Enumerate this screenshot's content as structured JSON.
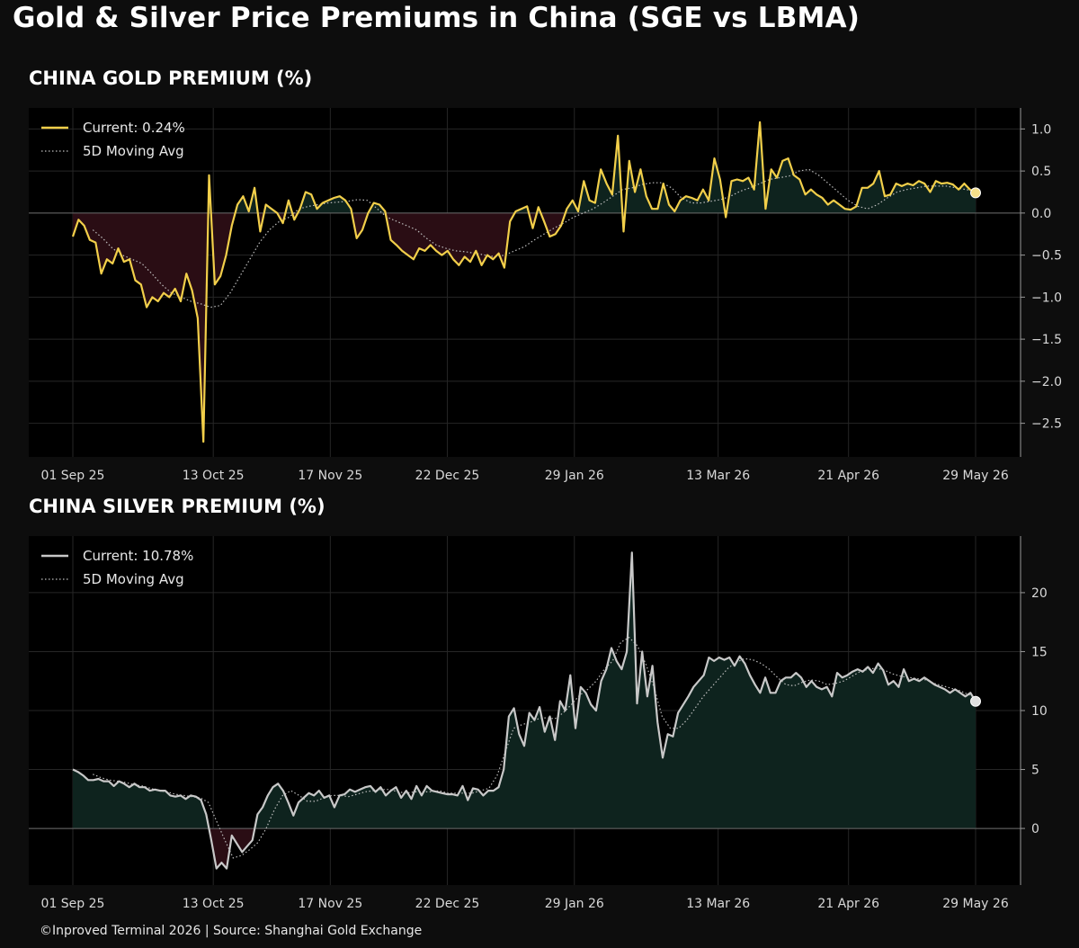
{
  "title": "Gold & Silver Price Premiums in China (SGE vs LBMA)",
  "footer": "©Inproved Terminal 2026 | Source: Shanghai Gold Exchange",
  "colors": {
    "background": "#0d0d0d",
    "plot_bg": "#000000",
    "gold": "#f2cf4a",
    "silver": "#c8c8c8",
    "positive_fill": "#0e231e",
    "negative_fill": "#2a0d14",
    "grid": "#262626",
    "zero_line": "#6a6a6a",
    "ma": "#bdbdbd"
  },
  "chart_data": [
    {
      "type": "line",
      "title": "CHINA GOLD PREMIUM (%)",
      "xlabel": "",
      "ylabel": "",
      "x_ticks": [
        "01 Sep 25",
        "13 Oct 25",
        "17 Nov 25",
        "22 Dec 25",
        "29 Jan 26",
        "13 Mar 26",
        "21 Apr 26",
        "29 May 26"
      ],
      "x_range": [
        "2025-09-01",
        "2026-05-29"
      ],
      "ylim": [
        -2.9,
        1.25
      ],
      "y_ticks": [
        1.0,
        0.5,
        0.0,
        -0.5,
        -1.0,
        -1.5,
        -2.0,
        -2.5
      ],
      "y_tick_labels": [
        "1.0",
        "0.5",
        "0.0",
        "−0.5",
        "−1.0",
        "−1.5",
        "−2.0",
        "−2.5"
      ],
      "y_axis_side": "right",
      "grid": true,
      "legend_position": "top-left",
      "legend": [
        "Current: 0.24%",
        "5D Moving Avg"
      ],
      "current_value": 0.24,
      "series": [
        {
          "name": "Current: 0.24%",
          "x_start": "2025-09-01",
          "x_end": "2026-05-29",
          "values": [
            -0.28,
            -0.08,
            -0.15,
            -0.32,
            -0.35,
            -0.72,
            -0.55,
            -0.6,
            -0.42,
            -0.58,
            -0.55,
            -0.8,
            -0.85,
            -1.12,
            -1.0,
            -1.05,
            -0.95,
            -1.0,
            -0.9,
            -1.05,
            -0.72,
            -0.92,
            -1.25,
            -2.72,
            0.45,
            -0.85,
            -0.75,
            -0.5,
            -0.15,
            0.1,
            0.2,
            0.02,
            0.3,
            -0.22,
            0.1,
            0.05,
            0.0,
            -0.12,
            0.15,
            -0.08,
            0.05,
            0.25,
            0.22,
            0.05,
            0.12,
            0.15,
            0.18,
            0.2,
            0.15,
            0.05,
            -0.3,
            -0.2,
            0.0,
            0.12,
            0.1,
            0.02,
            -0.32,
            -0.38,
            -0.45,
            -0.5,
            -0.55,
            -0.42,
            -0.45,
            -0.38,
            -0.45,
            -0.5,
            -0.45,
            -0.55,
            -0.62,
            -0.52,
            -0.58,
            -0.45,
            -0.62,
            -0.5,
            -0.55,
            -0.48,
            -0.65,
            -0.1,
            0.02,
            0.05,
            0.08,
            -0.18,
            0.07,
            -0.1,
            -0.28,
            -0.25,
            -0.15,
            0.05,
            0.15,
            0.02,
            0.38,
            0.15,
            0.12,
            0.52,
            0.35,
            0.22,
            0.92,
            -0.22,
            0.62,
            0.25,
            0.52,
            0.2,
            0.05,
            0.05,
            0.35,
            0.1,
            0.02,
            0.15,
            0.2,
            0.18,
            0.15,
            0.28,
            0.15,
            0.65,
            0.4,
            -0.05,
            0.38,
            0.4,
            0.38,
            0.42,
            0.28,
            1.08,
            0.05,
            0.52,
            0.42,
            0.62,
            0.65,
            0.45,
            0.4,
            0.22,
            0.28,
            0.22,
            0.18,
            0.1,
            0.15,
            0.1,
            0.05,
            0.04,
            0.08,
            0.3,
            0.3,
            0.35,
            0.5,
            0.2,
            0.22,
            0.35,
            0.32,
            0.35,
            0.33,
            0.38,
            0.35,
            0.25,
            0.38,
            0.35,
            0.36,
            0.34,
            0.28,
            0.35,
            0.28,
            0.24
          ]
        },
        {
          "name": "5D Moving Avg",
          "style": "dotted",
          "x_start": "2025-09-07",
          "x_end": "2026-05-29",
          "values": [
            -0.2,
            -0.3,
            -0.42,
            -0.5,
            -0.55,
            -0.6,
            -0.72,
            -0.85,
            -0.95,
            -1.0,
            -1.05,
            -1.08,
            -1.12,
            -1.1,
            -0.95,
            -0.75,
            -0.55,
            -0.35,
            -0.2,
            -0.1,
            -0.05,
            0.05,
            0.08,
            0.1,
            0.12,
            0.13,
            0.14,
            0.16,
            0.15,
            0.05,
            -0.05,
            -0.1,
            -0.15,
            -0.2,
            -0.3,
            -0.38,
            -0.42,
            -0.45,
            -0.46,
            -0.48,
            -0.5,
            -0.52,
            -0.5,
            -0.45,
            -0.4,
            -0.32,
            -0.25,
            -0.18,
            -0.12,
            -0.05,
            0.0,
            0.05,
            0.12,
            0.2,
            0.28,
            0.3,
            0.34,
            0.36,
            0.36,
            0.3,
            0.18,
            0.12,
            0.12,
            0.14,
            0.16,
            0.2,
            0.26,
            0.3,
            0.35,
            0.4,
            0.42,
            0.44,
            0.5,
            0.52,
            0.45,
            0.35,
            0.25,
            0.15,
            0.08,
            0.05,
            0.1,
            0.18,
            0.25,
            0.28,
            0.3,
            0.32,
            0.32,
            0.32,
            0.3,
            0.28,
            0.26
          ]
        }
      ]
    },
    {
      "type": "line",
      "title": "CHINA SILVER PREMIUM (%)",
      "xlabel": "",
      "ylabel": "",
      "x_ticks": [
        "01 Sep 25",
        "13 Oct 25",
        "17 Nov 25",
        "22 Dec 25",
        "29 Jan 26",
        "13 Mar 26",
        "21 Apr 26",
        "29 May 26"
      ],
      "x_range": [
        "2025-09-01",
        "2026-05-29"
      ],
      "ylim": [
        -4.8,
        24.8
      ],
      "y_ticks": [
        20,
        15,
        10,
        5,
        0
      ],
      "y_tick_labels": [
        "20",
        "15",
        "10",
        "5",
        "0"
      ],
      "y_axis_side": "right",
      "grid": true,
      "legend_position": "top-left",
      "legend": [
        "Current: 10.78%",
        "5D Moving Avg"
      ],
      "current_value": 10.78,
      "series": [
        {
          "name": "Current: 10.78%",
          "x_start": "2025-09-01",
          "x_end": "2026-05-29",
          "values": [
            5.0,
            4.8,
            4.5,
            4.1,
            4.1,
            4.2,
            4.0,
            4.0,
            3.6,
            4.0,
            3.8,
            3.5,
            3.8,
            3.5,
            3.5,
            3.2,
            3.3,
            3.2,
            3.2,
            2.8,
            2.7,
            2.8,
            2.5,
            2.8,
            2.7,
            2.4,
            1.2,
            -1.0,
            -3.4,
            -2.9,
            -3.4,
            -0.6,
            -1.3,
            -2.0,
            -1.5,
            -1.0,
            1.2,
            1.8,
            2.8,
            3.5,
            3.8,
            3.2,
            2.2,
            1.1,
            2.2,
            2.6,
            3.0,
            2.8,
            3.2,
            2.6,
            2.8,
            1.8,
            2.8,
            2.9,
            3.3,
            3.1,
            3.3,
            3.5,
            3.6,
            3.1,
            3.5,
            2.8,
            3.2,
            3.5,
            2.6,
            3.2,
            2.5,
            3.6,
            2.8,
            3.6,
            3.2,
            3.1,
            3.0,
            2.9,
            2.9,
            2.8,
            3.6,
            2.4,
            3.4,
            3.3,
            2.8,
            3.2,
            3.2,
            3.5,
            5.0,
            9.5,
            10.2,
            8.0,
            7.0,
            9.8,
            9.2,
            10.3,
            8.2,
            9.5,
            7.5,
            10.8,
            10.0,
            13.0,
            8.5,
            12.0,
            11.5,
            10.5,
            10.0,
            12.5,
            13.5,
            15.3,
            14.2,
            13.5,
            15.0,
            23.4,
            10.6,
            15.0,
            11.2,
            13.8,
            9.0,
            6.0,
            8.0,
            7.8,
            9.8,
            10.5,
            11.2,
            12.0,
            12.5,
            13.0,
            14.5,
            14.2,
            14.5,
            14.3,
            14.5,
            13.8,
            14.6,
            14.0,
            13.0,
            12.2,
            11.5,
            12.8,
            11.5,
            11.5,
            12.5,
            12.8,
            12.8,
            13.2,
            12.8,
            12.0,
            12.5,
            12.0,
            11.8,
            12.0,
            11.2,
            13.2,
            12.8,
            13.0,
            13.3,
            13.5,
            13.3,
            13.7,
            13.2,
            14.0,
            13.4,
            12.2,
            12.5,
            12.0,
            13.5,
            12.5,
            12.7,
            12.5,
            12.8,
            12.5,
            12.2,
            12.0,
            11.8,
            11.5,
            11.8,
            11.5,
            11.2,
            11.5,
            10.78
          ]
        },
        {
          "name": "5D Moving Avg",
          "style": "dotted",
          "x_start": "2025-09-07",
          "x_end": "2026-05-29",
          "values": [
            4.6,
            4.3,
            4.1,
            4.0,
            3.9,
            3.7,
            3.6,
            3.4,
            3.2,
            3.1,
            2.9,
            2.8,
            2.7,
            2.6,
            2.2,
            0.6,
            -1.0,
            -2.5,
            -2.3,
            -1.8,
            -1.2,
            0.0,
            1.6,
            2.8,
            3.2,
            2.8,
            2.3,
            2.3,
            2.6,
            2.8,
            2.8,
            2.7,
            2.9,
            3.1,
            3.2,
            3.3,
            3.3,
            3.1,
            3.0,
            3.1,
            3.1,
            3.1,
            3.2,
            3.0,
            3.0,
            3.0,
            3.0,
            3.2,
            3.4,
            4.5,
            6.5,
            8.5,
            8.8,
            9.0,
            9.3,
            9.4,
            9.3,
            9.8,
            10.5,
            11.3,
            11.8,
            12.5,
            13.5,
            14.2,
            15.8,
            16.2,
            15.5,
            14.0,
            12.0,
            9.5,
            8.5,
            8.5,
            9.2,
            10.2,
            11.2,
            12.0,
            12.8,
            13.6,
            14.1,
            14.4,
            14.3,
            14.0,
            13.5,
            12.8,
            12.2,
            12.1,
            12.4,
            12.6,
            12.5,
            12.2,
            12.3,
            12.5,
            12.9,
            13.3,
            13.5,
            13.6,
            13.4,
            13.1,
            12.9,
            12.8,
            12.7,
            12.6,
            12.3,
            12.1,
            11.9,
            11.7,
            11.4,
            11.1
          ]
        }
      ]
    }
  ]
}
